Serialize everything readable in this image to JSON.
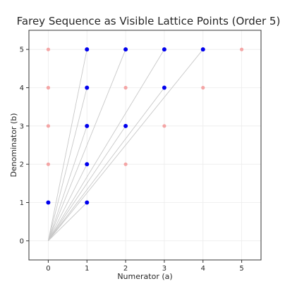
{
  "chart_data": {
    "type": "scatter",
    "title": "Farey Sequence as Visible Lattice Points (Order 5)",
    "xlabel": "Numerator (a)",
    "ylabel": "Denominator (b)",
    "xlim": [
      -0.5,
      5.5
    ],
    "ylim": [
      -0.5,
      5.5
    ],
    "xticks": [
      0,
      1,
      2,
      3,
      4,
      5
    ],
    "yticks": [
      0,
      1,
      2,
      3,
      4,
      5
    ],
    "grid": true,
    "series": [
      {
        "role": "visible",
        "color": "#0000ee",
        "points": [
          [
            0,
            1
          ],
          [
            1,
            1
          ],
          [
            1,
            2
          ],
          [
            1,
            3
          ],
          [
            2,
            3
          ],
          [
            1,
            4
          ],
          [
            3,
            4
          ],
          [
            1,
            5
          ],
          [
            2,
            5
          ],
          [
            3,
            5
          ],
          [
            4,
            5
          ]
        ]
      },
      {
        "role": "non-visible",
        "color": "#f4a5a5",
        "points": [
          [
            0,
            2
          ],
          [
            0,
            3
          ],
          [
            0,
            4
          ],
          [
            0,
            5
          ],
          [
            2,
            2
          ],
          [
            2,
            4
          ],
          [
            3,
            3
          ],
          [
            4,
            4
          ],
          [
            5,
            5
          ]
        ]
      }
    ],
    "rays": {
      "color": "#c8c8c8",
      "from": [
        0,
        0
      ],
      "to": [
        [
          1,
          1
        ],
        [
          1,
          2
        ],
        [
          1,
          3
        ],
        [
          2,
          3
        ],
        [
          1,
          4
        ],
        [
          3,
          4
        ],
        [
          1,
          5
        ],
        [
          2,
          5
        ],
        [
          3,
          5
        ],
        [
          4,
          5
        ]
      ]
    }
  }
}
